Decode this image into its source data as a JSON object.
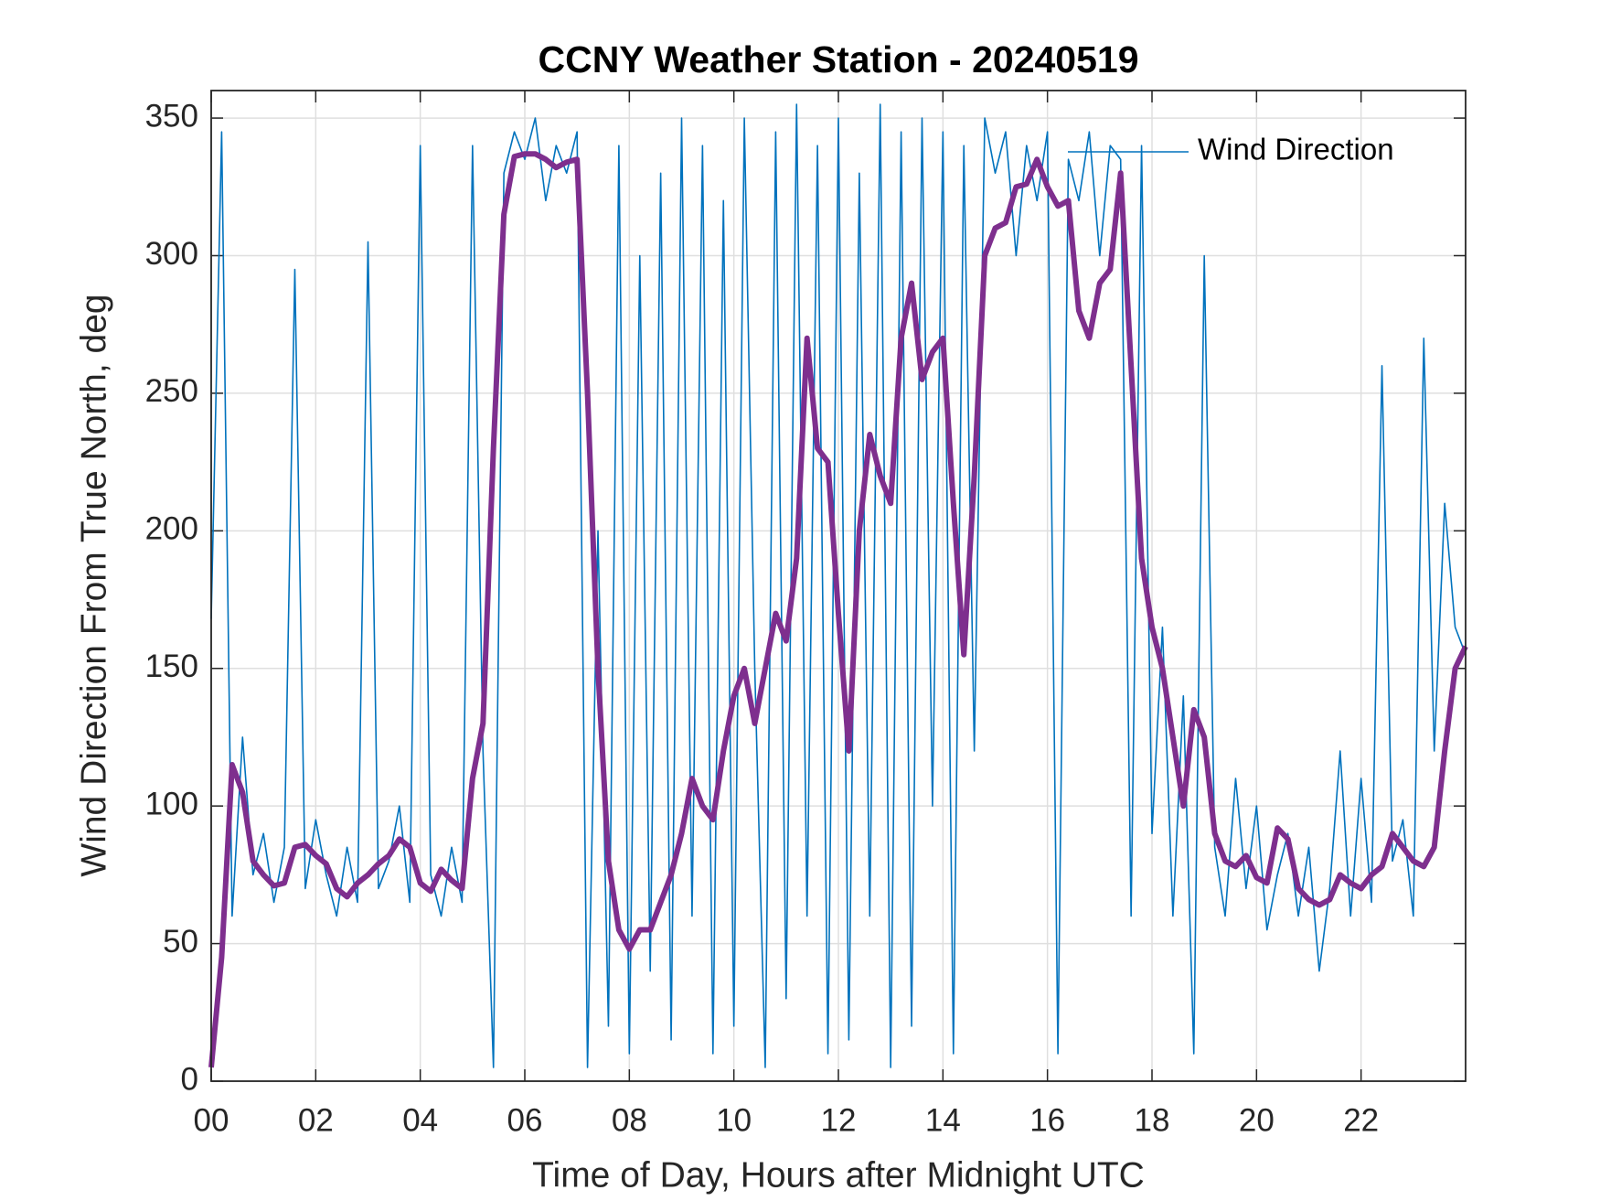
{
  "chart_data": {
    "type": "line",
    "title": "CCNY Weather Station - 20240519",
    "x_label": "Time of Day, Hours after Midnight UTC",
    "y_label": "Wind Direction From True North, deg",
    "x": [
      0,
      0.2,
      0.4,
      0.6,
      0.8,
      1,
      1.2,
      1.4,
      1.6,
      1.8,
      2,
      2.2,
      2.4,
      2.6,
      2.8,
      3,
      3.2,
      3.4,
      3.6,
      3.8,
      4,
      4.2,
      4.4,
      4.6,
      4.8,
      5,
      5.2,
      5.4,
      5.6,
      5.8,
      6,
      6.2,
      6.4,
      6.6,
      6.8,
      7,
      7.2,
      7.4,
      7.6,
      7.8,
      8,
      8.2,
      8.4,
      8.6,
      8.8,
      9,
      9.2,
      9.4,
      9.6,
      9.8,
      10,
      10.2,
      10.4,
      10.6,
      10.8,
      11,
      11.2,
      11.4,
      11.6,
      11.8,
      12,
      12.2,
      12.4,
      12.6,
      12.8,
      13,
      13.2,
      13.4,
      13.6,
      13.8,
      14,
      14.2,
      14.4,
      14.6,
      14.8,
      15,
      15.2,
      15.4,
      15.6,
      15.8,
      16,
      16.2,
      16.4,
      16.6,
      16.8,
      17,
      17.2,
      17.4,
      17.6,
      17.8,
      18,
      18.2,
      18.4,
      18.6,
      18.8,
      19,
      19.2,
      19.4,
      19.6,
      19.8,
      20,
      20.2,
      20.4,
      20.6,
      20.8,
      21,
      21.2,
      21.4,
      21.6,
      21.8,
      22,
      22.2,
      22.4,
      22.6,
      22.8,
      23,
      23.2,
      23.4,
      23.6,
      23.8,
      24
    ],
    "series": [
      {
        "name": "Wind Direction",
        "color": "#0072BD",
        "width": 1.6,
        "values": [
          168,
          345,
          60,
          125,
          75,
          90,
          65,
          85,
          295,
          70,
          95,
          75,
          60,
          85,
          65,
          305,
          70,
          80,
          100,
          65,
          340,
          75,
          60,
          85,
          65,
          340,
          120,
          5,
          330,
          345,
          335,
          350,
          320,
          340,
          330,
          345,
          5,
          200,
          20,
          340,
          10,
          300,
          40,
          330,
          15,
          350,
          60,
          340,
          10,
          320,
          20,
          350,
          150,
          5,
          345,
          30,
          355,
          60,
          340,
          10,
          350,
          15,
          330,
          60,
          355,
          5,
          345,
          20,
          350,
          100,
          345,
          10,
          340,
          120,
          350,
          330,
          345,
          300,
          340,
          320,
          345,
          10,
          335,
          320,
          345,
          300,
          340,
          335,
          60,
          340,
          90,
          165,
          60,
          140,
          10,
          300,
          85,
          60,
          110,
          70,
          100,
          55,
          75,
          90,
          60,
          85,
          40,
          70,
          120,
          60,
          110,
          65,
          260,
          80,
          95,
          60,
          270,
          120,
          210,
          165,
          155
        ]
      },
      {
        "color": "#7E2F8E",
        "width": 6,
        "values": [
          5,
          45,
          115,
          105,
          80,
          75,
          71,
          72,
          85,
          86,
          82,
          79,
          70,
          67,
          72,
          75,
          79,
          82,
          88,
          85,
          72,
          69,
          77,
          73,
          70,
          110,
          130,
          230,
          315,
          336,
          337,
          337,
          335,
          332,
          334,
          335,
          250,
          150,
          80,
          55,
          48,
          55,
          55,
          65,
          75,
          90,
          110,
          100,
          95,
          120,
          140,
          150,
          130,
          150,
          170,
          160,
          190,
          270,
          230,
          225,
          170,
          120,
          200,
          235,
          220,
          210,
          270,
          290,
          255,
          265,
          270,
          210,
          155,
          220,
          300,
          310,
          312,
          325,
          326,
          335,
          325,
          318,
          320,
          280,
          270,
          290,
          295,
          330,
          260,
          190,
          165,
          150,
          125,
          100,
          135,
          125,
          90,
          80,
          78,
          82,
          74,
          72,
          92,
          88,
          70,
          66,
          64,
          66,
          75,
          72,
          70,
          75,
          78,
          90,
          85,
          80,
          78,
          85,
          120,
          150,
          158
        ]
      }
    ],
    "xlim": [
      0,
      24
    ],
    "xticks": [
      {
        "value": 0,
        "label": "00"
      },
      {
        "value": 2,
        "label": "02"
      },
      {
        "value": 4,
        "label": "04"
      },
      {
        "value": 6,
        "label": "06"
      },
      {
        "value": 8,
        "label": "08"
      },
      10,
      12,
      14,
      16,
      18,
      20,
      22
    ],
    "ylim": [
      0,
      360
    ],
    "yticks": [
      0,
      50,
      100,
      150,
      200,
      250,
      300,
      350
    ],
    "grid": true,
    "legend": "upper right"
  }
}
